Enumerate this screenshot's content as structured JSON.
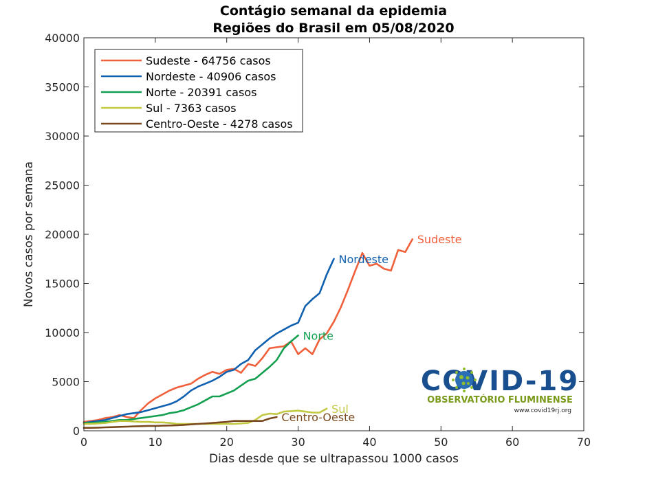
{
  "chart_data": {
    "type": "line",
    "title": "Contágio semanal da epidemia",
    "subtitle": "Regiões do Brasil em 05/08/2020",
    "xlabel": "Dias desde que se ultrapassou 1000 casos",
    "ylabel": "Novos casos por semana",
    "xlim": [
      0,
      70
    ],
    "ylim": [
      0,
      40000
    ],
    "xticks": [
      0,
      10,
      20,
      30,
      40,
      50,
      60,
      70
    ],
    "yticks": [
      0,
      5000,
      10000,
      15000,
      20000,
      25000,
      30000,
      35000,
      40000
    ],
    "xtick_labels": [
      "0",
      "10",
      "20",
      "30",
      "40",
      "50",
      "60",
      "70"
    ],
    "ytick_labels": [
      "0",
      "5000",
      "10000",
      "15000",
      "20000",
      "25000",
      "30000",
      "35000",
      "40000"
    ],
    "grid": false,
    "legend_position": "top-left",
    "series": [
      {
        "name": "Sudeste - 64756 casos",
        "end_label": "Sudeste",
        "color": "#f0603b",
        "x": [
          0,
          1,
          2,
          3,
          4,
          5,
          6,
          7,
          8,
          9,
          10,
          11,
          12,
          13,
          14,
          15,
          16,
          17,
          18,
          19,
          20,
          21,
          22,
          23,
          24,
          25,
          26,
          27,
          28,
          29,
          30,
          31,
          32,
          33,
          34,
          35,
          36,
          37,
          38,
          39,
          40,
          41,
          42,
          43,
          44,
          45,
          46
        ],
        "y": [
          900,
          1000,
          1100,
          1300,
          1400,
          1600,
          1400,
          1300,
          2100,
          2800,
          3300,
          3700,
          4100,
          4400,
          4600,
          4800,
          5300,
          5700,
          6000,
          5800,
          6200,
          6300,
          5900,
          6800,
          6600,
          7400,
          8400,
          8500,
          8600,
          9100,
          7800,
          8400,
          7800,
          9300,
          9900,
          11100,
          12600,
          14400,
          16300,
          18100,
          16800,
          17000,
          16500,
          16300,
          18400,
          18200,
          19500
        ]
      },
      {
        "name": "Nordeste - 40906 casos",
        "end_label": "Nordeste",
        "color": "#1060b0",
        "x": [
          0,
          1,
          2,
          3,
          4,
          5,
          6,
          7,
          8,
          9,
          10,
          11,
          12,
          13,
          14,
          15,
          16,
          17,
          18,
          19,
          20,
          21,
          22,
          23,
          24,
          25,
          26,
          27,
          28,
          29,
          30,
          31,
          32,
          33,
          34,
          35
        ],
        "y": [
          800,
          900,
          1000,
          1100,
          1300,
          1500,
          1700,
          1800,
          1900,
          2100,
          2300,
          2500,
          2700,
          3000,
          3500,
          4100,
          4500,
          4800,
          5100,
          5500,
          6000,
          6200,
          6800,
          7200,
          8200,
          8800,
          9400,
          9900,
          10300,
          10700,
          11000,
          12700,
          13400,
          14000,
          15900,
          17500
        ]
      },
      {
        "name": "Norte - 20391 casos",
        "end_label": "Norte",
        "color": "#12a050",
        "x": [
          0,
          1,
          2,
          3,
          4,
          5,
          6,
          7,
          8,
          9,
          10,
          11,
          12,
          13,
          14,
          15,
          16,
          17,
          18,
          19,
          20,
          21,
          22,
          23,
          24,
          25,
          26,
          27,
          28,
          29,
          30
        ],
        "y": [
          800,
          800,
          850,
          900,
          1000,
          1100,
          1100,
          1200,
          1300,
          1400,
          1500,
          1600,
          1800,
          1900,
          2100,
          2400,
          2700,
          3100,
          3500,
          3500,
          3800,
          4100,
          4600,
          5100,
          5300,
          5900,
          6500,
          7200,
          8400,
          9100,
          9700
        ]
      },
      {
        "name": "Sul - 7363 casos",
        "end_label": "Sul",
        "color": "#c2c840",
        "x": [
          0,
          1,
          2,
          3,
          4,
          5,
          6,
          7,
          8,
          9,
          10,
          11,
          12,
          13,
          14,
          15,
          16,
          17,
          18,
          19,
          20,
          21,
          22,
          23,
          24,
          25,
          26,
          27,
          28,
          29,
          30,
          31,
          32,
          33,
          34
        ],
        "y": [
          700,
          700,
          750,
          800,
          900,
          1000,
          1000,
          950,
          900,
          900,
          850,
          850,
          800,
          700,
          700,
          700,
          700,
          700,
          700,
          700,
          700,
          700,
          750,
          800,
          1100,
          1600,
          1750,
          1700,
          1950,
          2000,
          2050,
          1950,
          1850,
          1850,
          2250
        ]
      },
      {
        "name": "Centro-Oeste - 4278 casos",
        "end_label": "Centro-Oeste",
        "color": "#7a4a1e",
        "x": [
          0,
          1,
          2,
          3,
          4,
          5,
          6,
          7,
          8,
          9,
          10,
          11,
          12,
          13,
          14,
          15,
          16,
          17,
          18,
          19,
          20,
          21,
          22,
          23,
          24,
          25,
          26,
          27
        ],
        "y": [
          300,
          300,
          320,
          350,
          370,
          400,
          420,
          450,
          470,
          500,
          500,
          520,
          540,
          560,
          600,
          650,
          700,
          750,
          800,
          850,
          900,
          1000,
          1000,
          1000,
          1000,
          1000,
          1250,
          1400
        ]
      }
    ]
  },
  "logo": {
    "title": "COVID-19",
    "subtitle": "OBSERVATÓRIO FLUMINENSE",
    "url": "www.covid19rj.org",
    "title_color": "#1a4f8f",
    "subtitle_color": "#7a9a1a"
  }
}
